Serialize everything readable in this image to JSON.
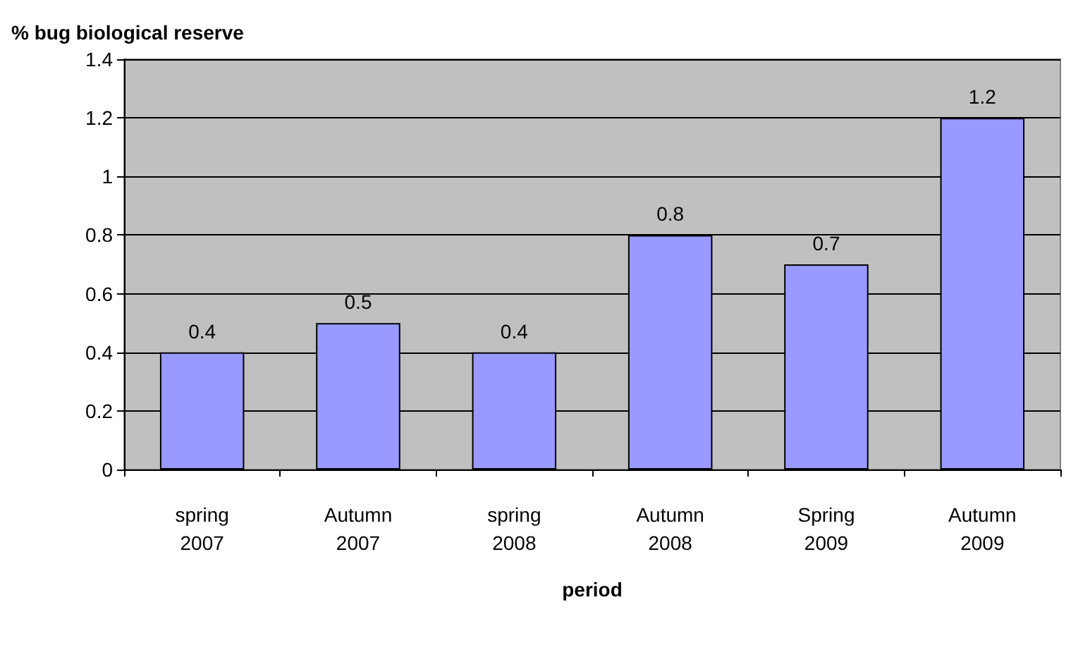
{
  "chart_data": {
    "type": "bar",
    "xlabel": "period",
    "ylabel": "% bug biological reserve",
    "categories": [
      "spring 2007",
      "Autumn 2007",
      "spring 2008",
      "Autumn 2008",
      "Spring 2009",
      "Autumn 2009"
    ],
    "values": [
      0.4,
      0.5,
      0.4,
      0.8,
      0.7,
      1.2
    ],
    "color": "#9999ff",
    "ylim": [
      0,
      1.4
    ],
    "yticks": [
      0,
      0.2,
      0.4,
      0.6,
      0.8,
      1,
      1.2,
      1.4
    ],
    "grid": "y",
    "data_labels": true
  }
}
